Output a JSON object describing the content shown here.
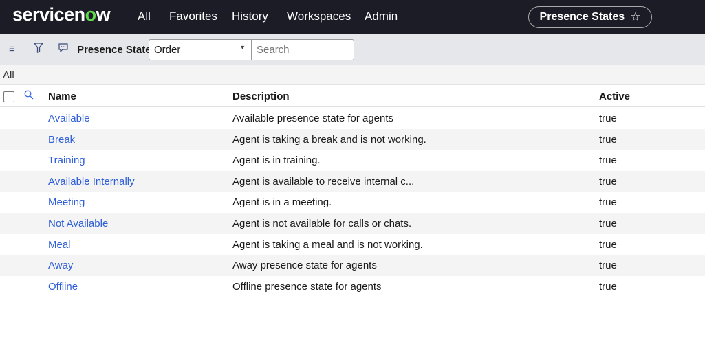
{
  "header": {
    "logo_text": "servicenow",
    "nav": [
      "All",
      "Favorites",
      "History",
      "Workspaces",
      "Admin"
    ],
    "context_pill": "Presence States"
  },
  "toolbar": {
    "title": "Presence States",
    "order_select": "Order",
    "search_placeholder": "Search"
  },
  "filter_breadcrumb": "All",
  "table": {
    "columns": [
      "Name",
      "Description",
      "Active"
    ],
    "rows": [
      {
        "name": "Available",
        "description": "Available presence state for agents",
        "active": "true"
      },
      {
        "name": "Break",
        "description": "Agent is taking a break and is not working.",
        "active": "true"
      },
      {
        "name": "Training",
        "description": "Agent is in training.",
        "active": "true"
      },
      {
        "name": "Available Internally",
        "description": "Agent is available to receive internal c...",
        "active": "true"
      },
      {
        "name": "Meeting",
        "description": "Agent is in a meeting.",
        "active": "true"
      },
      {
        "name": "Not Available",
        "description": "Agent is not available for calls or chats.",
        "active": "true"
      },
      {
        "name": "Meal",
        "description": "Agent is taking a meal and is not working.",
        "active": "true"
      },
      {
        "name": "Away",
        "description": "Away presence state for agents",
        "active": "true"
      },
      {
        "name": "Offline",
        "description": "Offline presence state for agents",
        "active": "true"
      }
    ]
  },
  "colors": {
    "header_bg": "#1c1c26",
    "link": "#2e5ed8",
    "logo_accent": "#62d84e"
  }
}
